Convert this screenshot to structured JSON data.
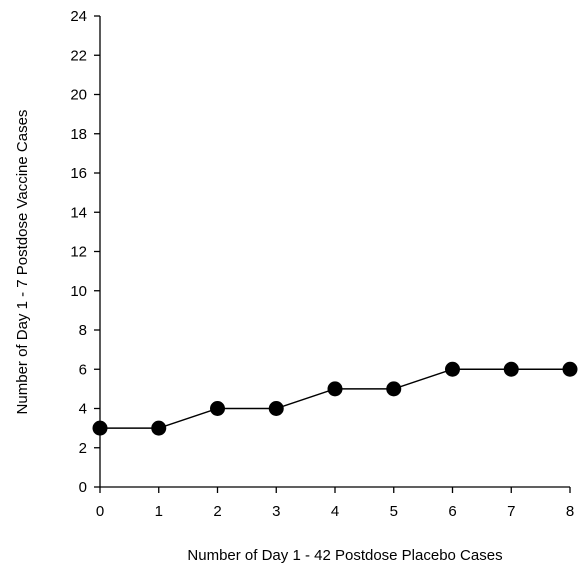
{
  "chart_data": {
    "type": "line",
    "xlabel": "Number of Day 1 - 42 Postdose Placebo Cases",
    "ylabel": "Number of Day 1 - 7 Postdose Vaccine Cases",
    "xlim": [
      0,
      8
    ],
    "ylim": [
      0,
      24
    ],
    "x_ticks": [
      "0",
      "1",
      "2",
      "3",
      "4",
      "5",
      "6",
      "7",
      "8"
    ],
    "y_ticks": [
      "0",
      "2",
      "4",
      "6",
      "8",
      "10",
      "12",
      "14",
      "16",
      "18",
      "20",
      "22",
      "24"
    ],
    "grid": false,
    "series": [
      {
        "x": [
          0,
          1,
          2,
          3,
          4,
          5,
          6,
          7,
          8
        ],
        "y": [
          3,
          3,
          4,
          4,
          5,
          5,
          6,
          6,
          6
        ],
        "color": "#000000",
        "marker": "filled-circle"
      }
    ]
  }
}
